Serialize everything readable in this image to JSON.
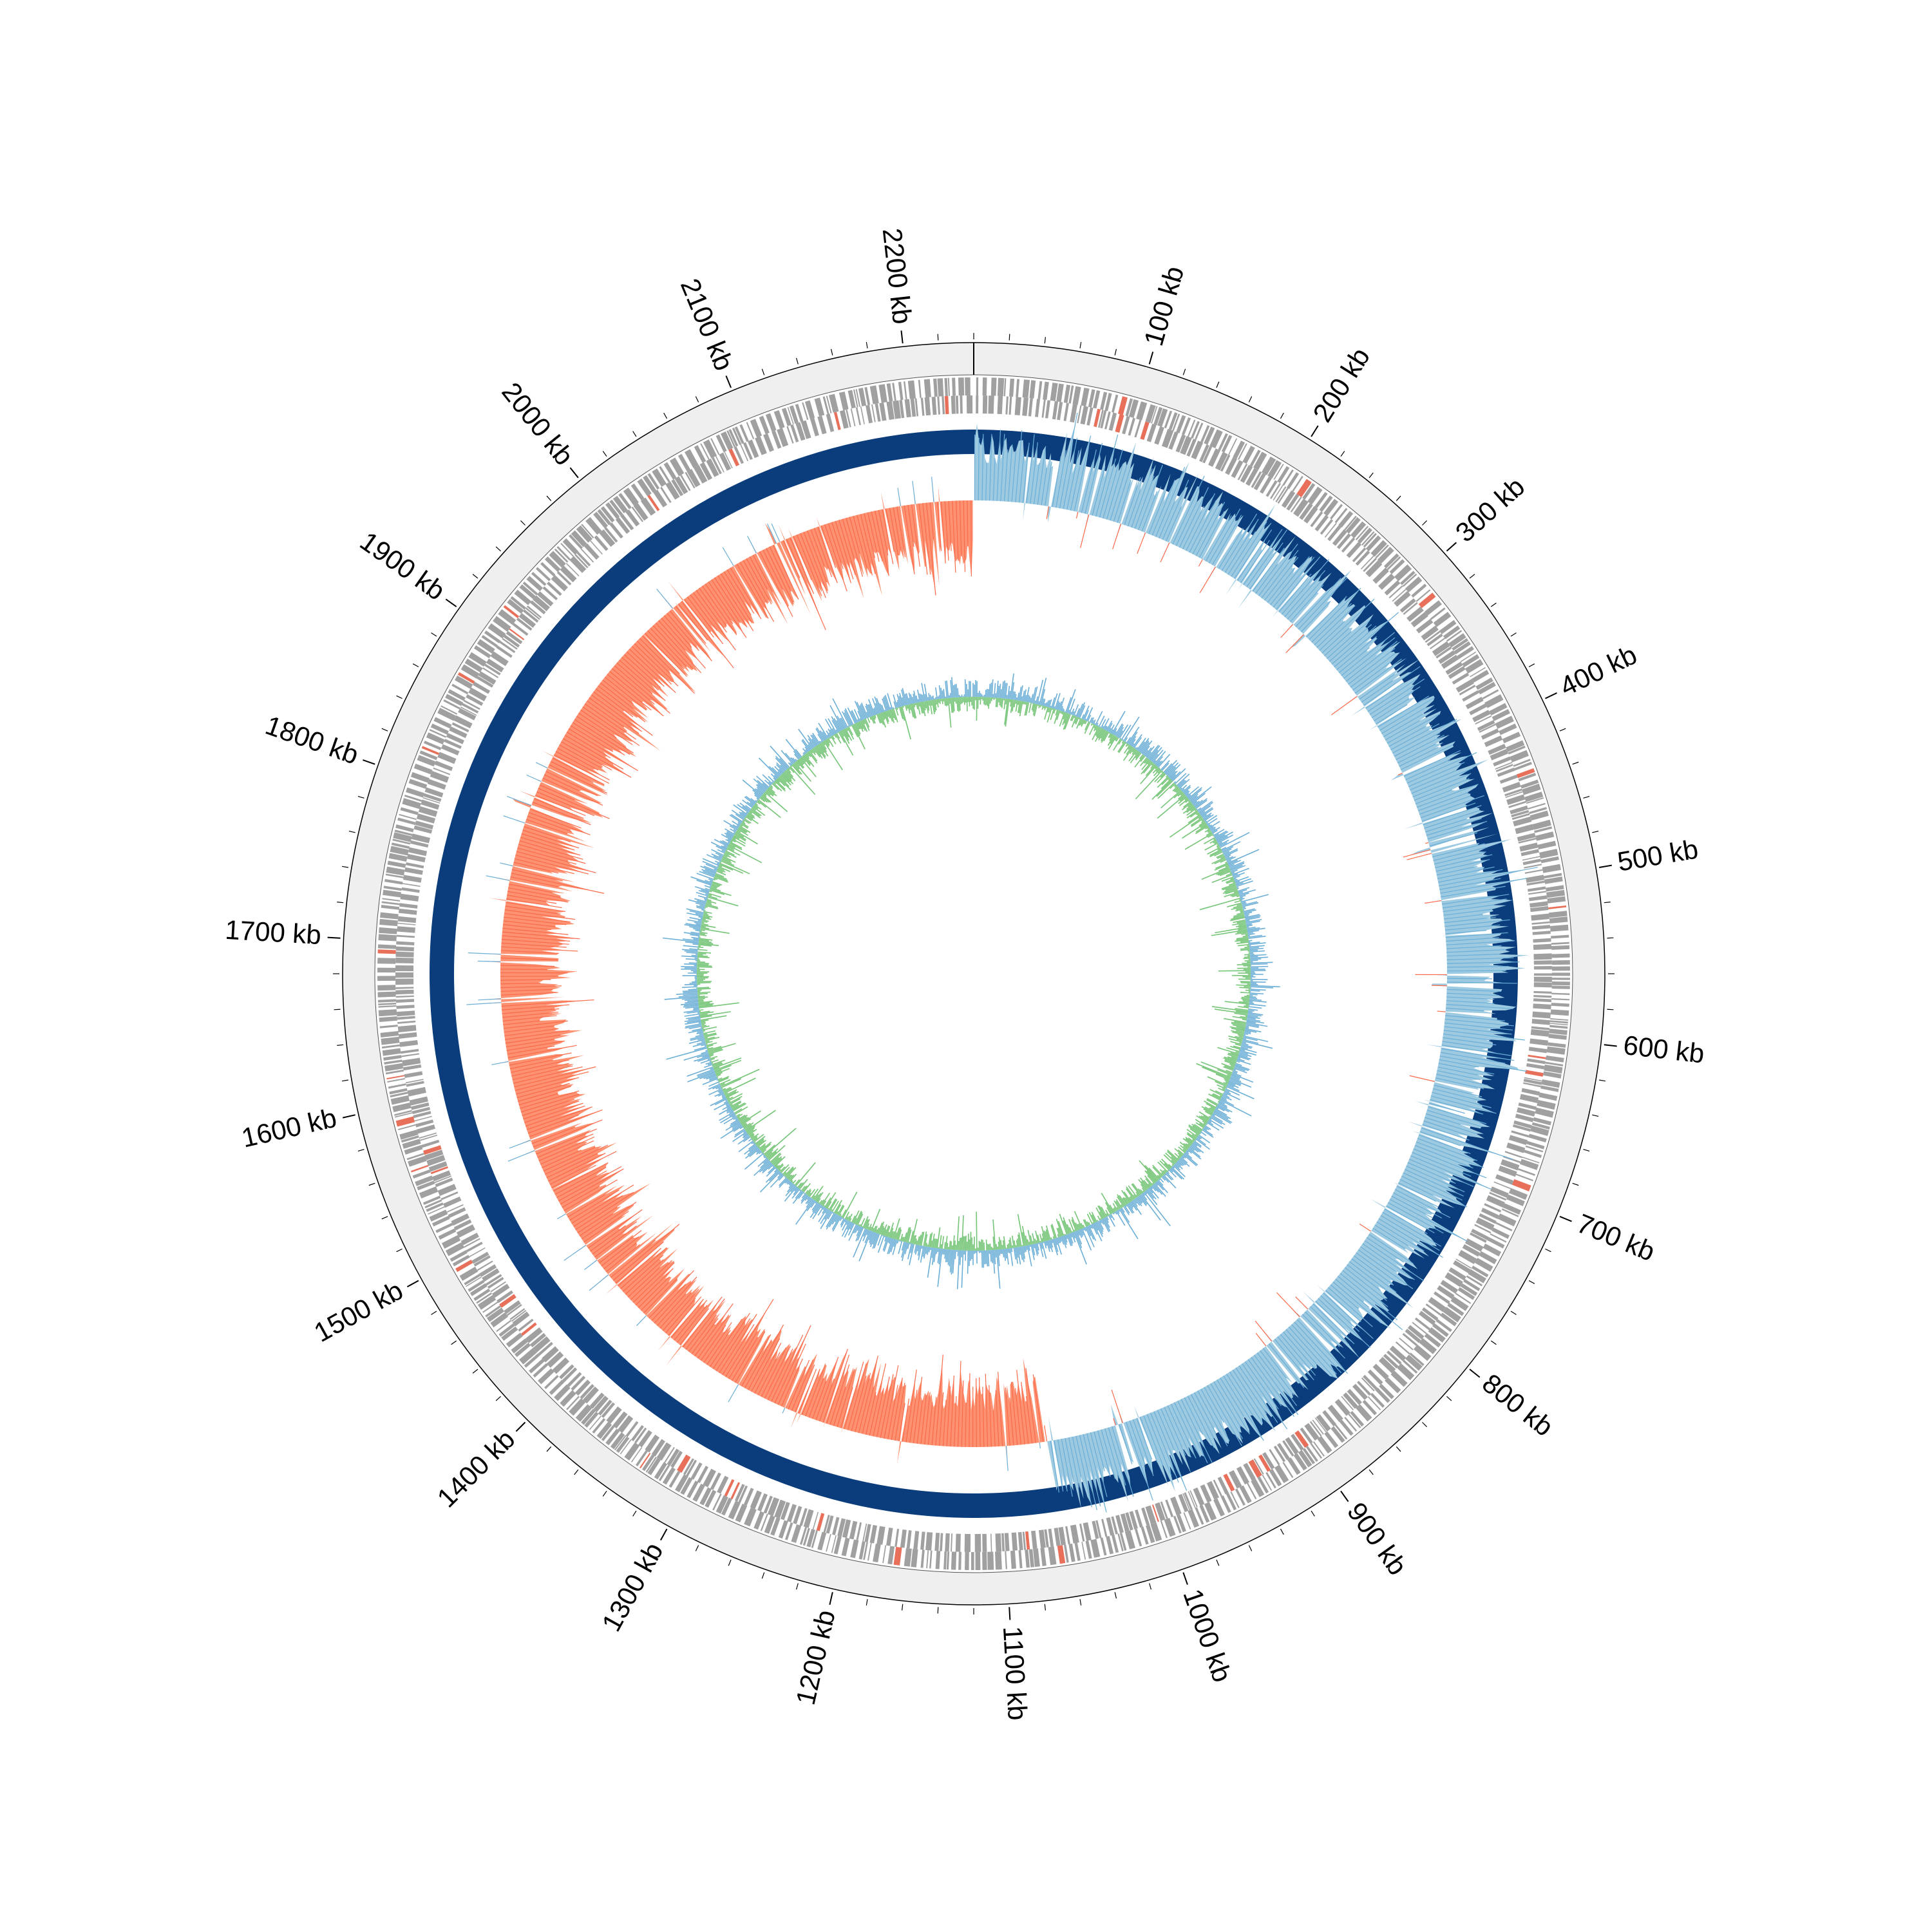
{
  "chart_data": {
    "type": "circular-genome",
    "genome_length_kb": 2240,
    "major_tick_labels": [
      {
        "kb": 100,
        "label": "100 kb"
      },
      {
        "kb": 200,
        "label": "200 kb"
      },
      {
        "kb": 300,
        "label": "300 kb"
      },
      {
        "kb": 400,
        "label": "400 kb"
      },
      {
        "kb": 500,
        "label": "500 kb"
      },
      {
        "kb": 600,
        "label": "600 kb"
      },
      {
        "kb": 700,
        "label": "700 kb"
      },
      {
        "kb": 800,
        "label": "800 kb"
      },
      {
        "kb": 900,
        "label": "900 kb"
      },
      {
        "kb": 1000,
        "label": "1000 kb"
      },
      {
        "kb": 1100,
        "label": "1100 kb"
      },
      {
        "kb": 1200,
        "label": "1200 kb"
      },
      {
        "kb": 1300,
        "label": "1300 kb"
      },
      {
        "kb": 1400,
        "label": "1400 kb"
      },
      {
        "kb": 1500,
        "label": "1500 kb"
      },
      {
        "kb": 1600,
        "label": "1600 kb"
      },
      {
        "kb": 1700,
        "label": "1700 kb"
      },
      {
        "kb": 1800,
        "label": "1800 kb"
      },
      {
        "kb": 1900,
        "label": "1900 kb"
      },
      {
        "kb": 2000,
        "label": "2000 kb"
      },
      {
        "kb": 2100,
        "label": "2100 kb"
      },
      {
        "kb": 2200,
        "label": "2200 kb"
      }
    ],
    "minor_tick_interval_kb": 20,
    "tracks": [
      {
        "name": "outer-ring",
        "kind": "background",
        "color": "#efefef"
      },
      {
        "name": "cds",
        "kind": "features",
        "color": "#a0a0a0",
        "highlight_color": "#e8705a"
      },
      {
        "name": "dense-band",
        "kind": "band",
        "color": "#0b3d7c"
      },
      {
        "name": "gc-skew",
        "kind": "signal",
        "positive_color": "#9ecae1",
        "negative_color": "#fc9272",
        "spike_pos_color": "#6baed6",
        "spike_neg_color": "#fb6a4a",
        "sign_switch_kb": [
          0,
          1065
        ]
      },
      {
        "name": "gc-content",
        "kind": "signal",
        "above_color": "#6baed6",
        "below_color": "#74c476"
      }
    ]
  }
}
